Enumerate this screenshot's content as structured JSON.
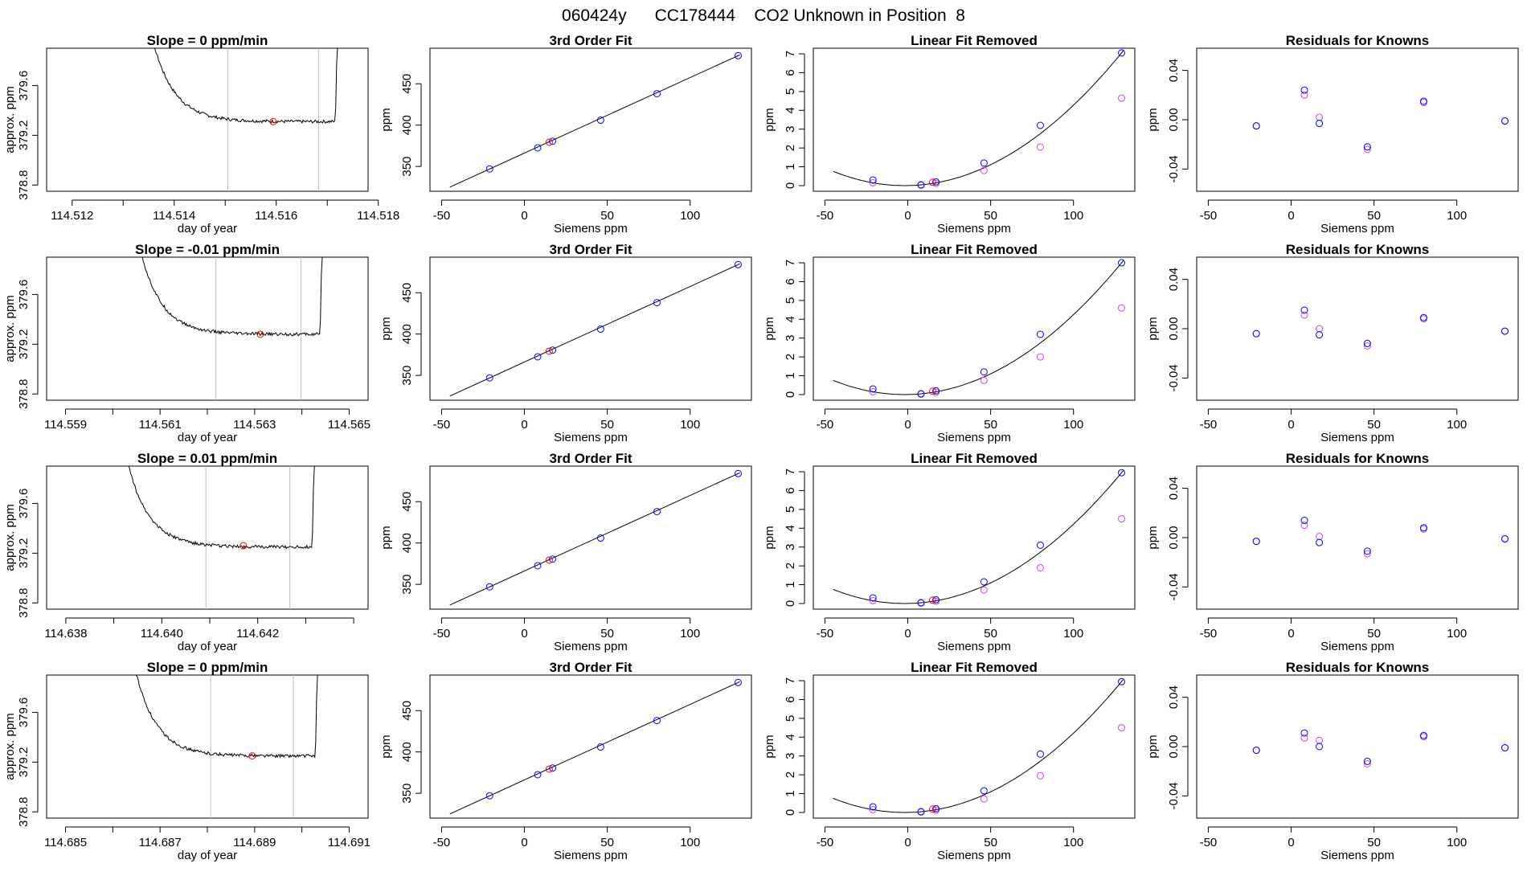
{
  "figure_title": "060424y      CC178444    CO2 Unknown in Position  8",
  "colors": {
    "axis": "#000000",
    "trace": "#000000",
    "vline": "#bebebe",
    "unknown": "#ff0000",
    "known_fit": "#0000ff",
    "known_raw": "#cc44ee"
  },
  "chart_data": [
    {
      "type": "line",
      "row": 1,
      "title": "Slope =  0  ppm/min",
      "xlabel": "day of year",
      "ylabel": "approx. ppm",
      "xlim": [
        114.5115,
        114.5178
      ],
      "ylim": [
        378.75,
        379.9
      ],
      "xticks": [
        114.512,
        114.513,
        114.514,
        114.515,
        114.516,
        114.517,
        114.518
      ],
      "xtick_labels": [
        "114.512",
        "",
        "114.514",
        "",
        "114.516",
        "",
        "114.518"
      ],
      "yticks": [
        378.8,
        379.2,
        379.6
      ],
      "ytick_labels": [
        "378.8",
        "379.2",
        "379.6"
      ],
      "trace_start": 114.5132,
      "trace_end": 114.51722,
      "plateau": 379.31,
      "window": [
        114.51505,
        114.51683
      ],
      "unknown_point": {
        "x": 114.51594,
        "y": 379.31
      }
    },
    {
      "type": "line",
      "row": 2,
      "title": "Slope =  -0.01  ppm/min",
      "xlabel": "day of year",
      "ylabel": "approx. ppm",
      "xlim": [
        114.5586,
        114.5654
      ],
      "ylim": [
        378.75,
        379.9
      ],
      "xticks": [
        114.559,
        114.56,
        114.561,
        114.562,
        114.563,
        114.564,
        114.565
      ],
      "xtick_labels": [
        "114.559",
        "",
        "114.561",
        "",
        "114.563",
        "",
        "114.565"
      ],
      "yticks": [
        378.8,
        379.2,
        379.6
      ],
      "ytick_labels": [
        "378.8",
        "379.2",
        "379.6"
      ],
      "trace_start": 114.5602,
      "trace_end": 114.56445,
      "plateau": 379.28,
      "window": [
        114.56218,
        114.56398
      ],
      "unknown_point": {
        "x": 114.56312,
        "y": 379.28
      }
    },
    {
      "type": "line",
      "row": 3,
      "title": "Slope =  0.01  ppm/min",
      "xlabel": "day of year",
      "ylabel": "approx. ppm",
      "xlim": [
        114.6376,
        114.6443
      ],
      "ylim": [
        378.75,
        379.9
      ],
      "xticks": [
        114.638,
        114.639,
        114.64,
        114.641,
        114.642,
        114.643,
        114.644
      ],
      "xtick_labels": [
        "114.638",
        "",
        "114.640",
        "",
        "114.642",
        "",
        ""
      ],
      "yticks": [
        378.8,
        379.2,
        379.6
      ],
      "ytick_labels": [
        "378.8",
        "379.2",
        "379.6"
      ],
      "trace_start": 114.6389,
      "trace_end": 114.6432,
      "plateau": 379.25,
      "window": [
        114.64092,
        114.64267
      ],
      "unknown_point": {
        "x": 114.6417,
        "y": 379.26
      }
    },
    {
      "type": "line",
      "row": 4,
      "title": "Slope =  0  ppm/min",
      "xlabel": "day of year",
      "ylabel": "approx. ppm",
      "xlim": [
        114.6846,
        114.6914
      ],
      "ylim": [
        378.75,
        379.9
      ],
      "xticks": [
        114.685,
        114.686,
        114.687,
        114.688,
        114.689,
        114.69,
        114.691
      ],
      "xtick_labels": [
        "114.685",
        "",
        "114.687",
        "",
        "114.689",
        "",
        "114.691"
      ],
      "yticks": [
        378.8,
        379.2,
        379.6
      ],
      "ytick_labels": [
        "378.8",
        "379.2",
        "379.6"
      ],
      "trace_start": 114.6861,
      "trace_end": 114.69035,
      "plateau": 379.25,
      "window": [
        114.68807,
        114.68982
      ],
      "unknown_point": {
        "x": 114.68895,
        "y": 379.25
      }
    },
    {
      "type": "scatter",
      "row": 1,
      "title": "3rd Order Fit",
      "xlabel": "Siemens ppm",
      "ylabel": "ppm",
      "xlim": [
        -57,
        137
      ],
      "ylim": [
        320,
        493
      ],
      "xticks": [
        -50,
        0,
        50,
        100
      ],
      "yticks": [
        350,
        400,
        450
      ],
      "line_x": [
        -45,
        130
      ],
      "points": [
        {
          "x": -21,
          "y": 347.0
        },
        {
          "x": 8,
          "y": 372.5
        },
        {
          "x": 17,
          "y": 380.5
        },
        {
          "x": 46,
          "y": 406.0
        },
        {
          "x": 80,
          "y": 438.0
        },
        {
          "x": 129,
          "y": 484.0
        }
      ],
      "unknown_point": {
        "x": 15,
        "y": 379.3
      }
    },
    {
      "type": "scatter",
      "row": 2,
      "title": "3rd Order Fit",
      "xlabel": "Siemens ppm",
      "ylabel": "ppm",
      "xlim": [
        -57,
        137
      ],
      "ylim": [
        320,
        493
      ],
      "xticks": [
        -50,
        0,
        50,
        100
      ],
      "yticks": [
        350,
        400,
        450
      ],
      "line_x": [
        -45,
        130
      ],
      "points": [
        {
          "x": -21,
          "y": 347.0
        },
        {
          "x": 8,
          "y": 372.5
        },
        {
          "x": 17,
          "y": 380.5
        },
        {
          "x": 46,
          "y": 406.0
        },
        {
          "x": 80,
          "y": 438.0
        },
        {
          "x": 129,
          "y": 484.0
        }
      ],
      "unknown_point": {
        "x": 15,
        "y": 379.3
      }
    },
    {
      "type": "scatter",
      "row": 3,
      "title": "3rd Order Fit",
      "xlabel": "Siemens ppm",
      "ylabel": "ppm",
      "xlim": [
        -57,
        137
      ],
      "ylim": [
        320,
        493
      ],
      "xticks": [
        -50,
        0,
        50,
        100
      ],
      "yticks": [
        350,
        400,
        450
      ],
      "line_x": [
        -45,
        130
      ],
      "points": [
        {
          "x": -21,
          "y": 347.0
        },
        {
          "x": 8,
          "y": 372.5
        },
        {
          "x": 17,
          "y": 380.5
        },
        {
          "x": 46,
          "y": 406.0
        },
        {
          "x": 80,
          "y": 438.0
        },
        {
          "x": 129,
          "y": 484.0
        }
      ],
      "unknown_point": {
        "x": 15,
        "y": 379.3
      }
    },
    {
      "type": "scatter",
      "row": 4,
      "title": "3rd Order Fit",
      "xlabel": "Siemens ppm",
      "ylabel": "ppm",
      "xlim": [
        -57,
        137
      ],
      "ylim": [
        320,
        493
      ],
      "xticks": [
        -50,
        0,
        50,
        100
      ],
      "yticks": [
        350,
        400,
        450
      ],
      "line_x": [
        -45,
        130
      ],
      "points": [
        {
          "x": -21,
          "y": 347.0
        },
        {
          "x": 8,
          "y": 372.5
        },
        {
          "x": 17,
          "y": 380.5
        },
        {
          "x": 46,
          "y": 406.0
        },
        {
          "x": 80,
          "y": 438.0
        },
        {
          "x": 129,
          "y": 484.0
        }
      ],
      "unknown_point": {
        "x": 15,
        "y": 379.3
      }
    },
    {
      "type": "scatter",
      "row": 1,
      "title": "Linear Fit Removed",
      "xlabel": "Siemens ppm",
      "ylabel": "ppm",
      "xlim": [
        -57,
        137
      ],
      "ylim": [
        -0.3,
        7.3
      ],
      "xticks": [
        -50,
        0,
        50,
        100
      ],
      "yticks": [
        0,
        1,
        2,
        3,
        4,
        5,
        6,
        7
      ],
      "curve": {
        "x_range": [
          -45,
          130
        ],
        "vertex_x": -2,
        "vertex_y": 0.0,
        "endpoint": {
          "x": 129,
          "y": 7.05
        }
      },
      "points": [
        {
          "x": -21,
          "y": 0.3
        },
        {
          "x": 8,
          "y": 0.03
        },
        {
          "x": 17,
          "y": 0.2
        },
        {
          "x": 46,
          "y": 1.2
        },
        {
          "x": 80,
          "y": 3.2
        },
        {
          "x": 129,
          "y": 7.05
        }
      ],
      "raw_points": [
        {
          "x": -21,
          "y": 0.15
        },
        {
          "x": 8,
          "y": 0.05
        },
        {
          "x": 17,
          "y": 0.12
        },
        {
          "x": 46,
          "y": 0.8
        },
        {
          "x": 80,
          "y": 2.05
        },
        {
          "x": 129,
          "y": 4.65
        }
      ],
      "unknown_point": {
        "x": 15,
        "y": 0.18
      }
    },
    {
      "type": "scatter",
      "row": 2,
      "title": "Linear Fit Removed",
      "xlabel": "Siemens ppm",
      "ylabel": "ppm",
      "xlim": [
        -57,
        137
      ],
      "ylim": [
        -0.3,
        7.3
      ],
      "xticks": [
        -50,
        0,
        50,
        100
      ],
      "yticks": [
        0,
        1,
        2,
        3,
        4,
        5,
        6,
        7
      ],
      "curve": {
        "x_range": [
          -45,
          130
        ],
        "vertex_x": -2,
        "vertex_y": 0.0,
        "endpoint": {
          "x": 129,
          "y": 7.0
        }
      },
      "points": [
        {
          "x": -21,
          "y": 0.3
        },
        {
          "x": 8,
          "y": 0.03
        },
        {
          "x": 17,
          "y": 0.2
        },
        {
          "x": 46,
          "y": 1.2
        },
        {
          "x": 80,
          "y": 3.2
        },
        {
          "x": 129,
          "y": 7.0
        }
      ],
      "raw_points": [
        {
          "x": -21,
          "y": 0.15
        },
        {
          "x": 8,
          "y": 0.05
        },
        {
          "x": 17,
          "y": 0.12
        },
        {
          "x": 46,
          "y": 0.75
        },
        {
          "x": 80,
          "y": 2.0
        },
        {
          "x": 129,
          "y": 4.6
        }
      ],
      "unknown_point": {
        "x": 15,
        "y": 0.18
      }
    },
    {
      "type": "scatter",
      "row": 3,
      "title": "Linear Fit Removed",
      "xlabel": "Siemens ppm",
      "ylabel": "ppm",
      "xlim": [
        -57,
        137
      ],
      "ylim": [
        -0.3,
        7.3
      ],
      "xticks": [
        -50,
        0,
        50,
        100
      ],
      "yticks": [
        0,
        1,
        2,
        3,
        4,
        5,
        6,
        7
      ],
      "curve": {
        "x_range": [
          -45,
          130
        ],
        "vertex_x": -2,
        "vertex_y": 0.0,
        "endpoint": {
          "x": 129,
          "y": 6.95
        }
      },
      "points": [
        {
          "x": -21,
          "y": 0.3
        },
        {
          "x": 8,
          "y": 0.03
        },
        {
          "x": 17,
          "y": 0.2
        },
        {
          "x": 46,
          "y": 1.15
        },
        {
          "x": 80,
          "y": 3.1
        },
        {
          "x": 129,
          "y": 6.95
        }
      ],
      "raw_points": [
        {
          "x": -21,
          "y": 0.15
        },
        {
          "x": 8,
          "y": 0.05
        },
        {
          "x": 17,
          "y": 0.12
        },
        {
          "x": 46,
          "y": 0.72
        },
        {
          "x": 80,
          "y": 1.9
        },
        {
          "x": 129,
          "y": 4.5
        }
      ],
      "unknown_point": {
        "x": 15,
        "y": 0.18
      }
    },
    {
      "type": "scatter",
      "row": 4,
      "title": "Linear Fit Removed",
      "xlabel": "Siemens ppm",
      "ylabel": "ppm",
      "xlim": [
        -57,
        137
      ],
      "ylim": [
        -0.3,
        7.3
      ],
      "xticks": [
        -50,
        0,
        50,
        100
      ],
      "yticks": [
        0,
        1,
        2,
        3,
        4,
        5,
        6,
        7
      ],
      "curve": {
        "x_range": [
          -45,
          130
        ],
        "vertex_x": -2,
        "vertex_y": 0.0,
        "endpoint": {
          "x": 129,
          "y": 6.95
        }
      },
      "points": [
        {
          "x": -21,
          "y": 0.3
        },
        {
          "x": 8,
          "y": 0.03
        },
        {
          "x": 17,
          "y": 0.2
        },
        {
          "x": 46,
          "y": 1.15
        },
        {
          "x": 80,
          "y": 3.1
        },
        {
          "x": 129,
          "y": 6.95
        }
      ],
      "raw_points": [
        {
          "x": -21,
          "y": 0.15
        },
        {
          "x": 8,
          "y": 0.05
        },
        {
          "x": 17,
          "y": 0.12
        },
        {
          "x": 46,
          "y": 0.72
        },
        {
          "x": 80,
          "y": 1.95
        },
        {
          "x": 129,
          "y": 4.5
        }
      ],
      "unknown_point": {
        "x": 15,
        "y": 0.18
      }
    },
    {
      "type": "scatter",
      "row": 1,
      "title": "Residuals for Knowns",
      "xlabel": "Siemens ppm",
      "ylabel": "ppm",
      "xlim": [
        -57,
        137
      ],
      "ylim": [
        -0.058,
        0.058
      ],
      "xticks": [
        -50,
        0,
        50,
        100
      ],
      "yticks": [
        -0.04,
        0.0,
        0.04
      ],
      "ytick_labels": [
        "-0.04",
        "0.00",
        "0.04"
      ],
      "points": [
        {
          "x": -21,
          "y": -0.005
        },
        {
          "x": 8,
          "y": 0.024
        },
        {
          "x": 17,
          "y": -0.003
        },
        {
          "x": 46,
          "y": -0.022
        },
        {
          "x": 80,
          "y": 0.015
        },
        {
          "x": 129,
          "y": -0.001
        }
      ],
      "raw_points": [
        {
          "x": -21,
          "y": -0.005
        },
        {
          "x": 8,
          "y": 0.02
        },
        {
          "x": 17,
          "y": 0.002
        },
        {
          "x": 46,
          "y": -0.024
        },
        {
          "x": 80,
          "y": 0.014
        },
        {
          "x": 129,
          "y": -0.001
        }
      ]
    },
    {
      "type": "scatter",
      "row": 2,
      "title": "Residuals for Knowns",
      "xlabel": "Siemens ppm",
      "ylabel": "ppm",
      "xlim": [
        -57,
        137
      ],
      "ylim": [
        -0.058,
        0.058
      ],
      "xticks": [
        -50,
        0,
        50,
        100
      ],
      "yticks": [
        -0.04,
        0.0,
        0.04
      ],
      "ytick_labels": [
        "-0.04",
        "0.00",
        "0.04"
      ],
      "points": [
        {
          "x": -21,
          "y": -0.004
        },
        {
          "x": 8,
          "y": 0.015
        },
        {
          "x": 17,
          "y": -0.005
        },
        {
          "x": 46,
          "y": -0.012
        },
        {
          "x": 80,
          "y": 0.009
        },
        {
          "x": 129,
          "y": -0.002
        }
      ],
      "raw_points": [
        {
          "x": -21,
          "y": -0.004
        },
        {
          "x": 8,
          "y": 0.011
        },
        {
          "x": 17,
          "y": 0.0
        },
        {
          "x": 46,
          "y": -0.014
        },
        {
          "x": 80,
          "y": 0.008
        },
        {
          "x": 129,
          "y": -0.002
        }
      ]
    },
    {
      "type": "scatter",
      "row": 3,
      "title": "Residuals for Knowns",
      "xlabel": "Siemens ppm",
      "ylabel": "ppm",
      "xlim": [
        -57,
        137
      ],
      "ylim": [
        -0.058,
        0.058
      ],
      "xticks": [
        -50,
        0,
        50,
        100
      ],
      "yticks": [
        -0.04,
        0.0,
        0.04
      ],
      "ytick_labels": [
        "-0.04",
        "0.00",
        "0.04"
      ],
      "points": [
        {
          "x": -21,
          "y": -0.003
        },
        {
          "x": 8,
          "y": 0.014
        },
        {
          "x": 17,
          "y": -0.004
        },
        {
          "x": 46,
          "y": -0.011
        },
        {
          "x": 80,
          "y": 0.008
        },
        {
          "x": 129,
          "y": -0.001
        }
      ],
      "raw_points": [
        {
          "x": -21,
          "y": -0.003
        },
        {
          "x": 8,
          "y": 0.01
        },
        {
          "x": 17,
          "y": 0.001
        },
        {
          "x": 46,
          "y": -0.013
        },
        {
          "x": 80,
          "y": 0.007
        },
        {
          "x": 129,
          "y": -0.001
        }
      ]
    },
    {
      "type": "scatter",
      "row": 4,
      "title": "Residuals for Knowns",
      "xlabel": "Siemens ppm",
      "ylabel": "ppm",
      "xlim": [
        -57,
        137
      ],
      "ylim": [
        -0.058,
        0.058
      ],
      "xticks": [
        -50,
        0,
        50,
        100
      ],
      "yticks": [
        -0.04,
        0.0,
        0.04
      ],
      "ytick_labels": [
        "-0.04",
        "0.00",
        "0.04"
      ],
      "points": [
        {
          "x": -21,
          "y": -0.003
        },
        {
          "x": 8,
          "y": 0.011
        },
        {
          "x": 17,
          "y": 0.0
        },
        {
          "x": 46,
          "y": -0.012
        },
        {
          "x": 80,
          "y": 0.009
        },
        {
          "x": 129,
          "y": -0.001
        }
      ],
      "raw_points": [
        {
          "x": -21,
          "y": -0.003
        },
        {
          "x": 8,
          "y": 0.007
        },
        {
          "x": 17,
          "y": 0.005
        },
        {
          "x": 46,
          "y": -0.014
        },
        {
          "x": 80,
          "y": 0.008
        },
        {
          "x": 129,
          "y": -0.001
        }
      ]
    }
  ]
}
